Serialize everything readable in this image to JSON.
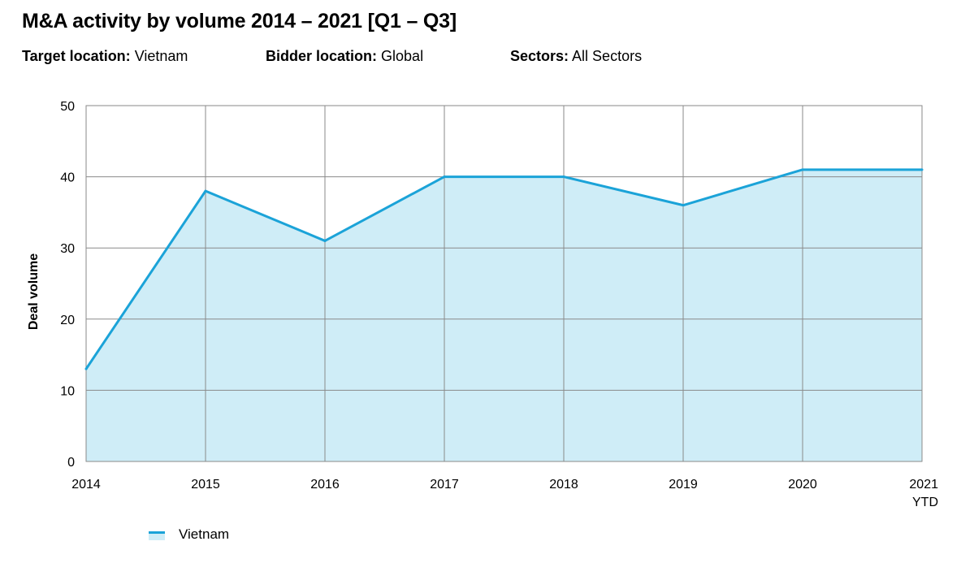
{
  "header": {
    "title": "M&A activity by volume 2014 – 2021 [Q1 – Q3]"
  },
  "filters": {
    "target_label": "Target location:",
    "target_value": "Vietnam",
    "bidder_label": "Bidder location:",
    "bidder_value": "Global",
    "sectors_label": "Sectors:",
    "sectors_value": "All Sectors"
  },
  "colors": {
    "line": "#1ba3d8",
    "fill": "#cfedf7",
    "grid": "#8a8a8a",
    "frame": "#8a8a8a"
  },
  "chart_data": {
    "type": "area",
    "title": "M&A activity by volume 2014 – 2021 [Q1 – Q3]",
    "xlabel": "",
    "ylabel": "Deal volume",
    "categories": [
      "2014",
      "2015",
      "2016",
      "2017",
      "2018",
      "2019",
      "2020",
      "2021"
    ],
    "category_sublabels": [
      "",
      "",
      "",
      "",
      "",
      "",
      "",
      "YTD"
    ],
    "ylim": [
      0,
      50
    ],
    "yticks": [
      0,
      10,
      20,
      30,
      40,
      50
    ],
    "grid": true,
    "legend_position": "bottom-left",
    "series": [
      {
        "name": "Vietnam",
        "values": [
          13,
          38,
          31,
          40,
          40,
          36,
          41,
          41
        ]
      }
    ]
  }
}
